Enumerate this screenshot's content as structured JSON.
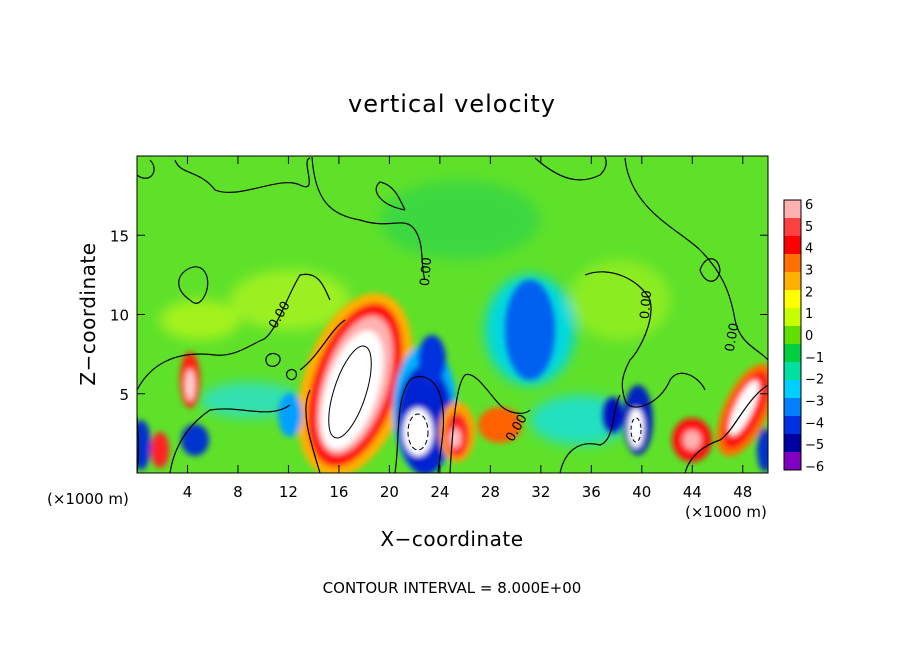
{
  "chart_data": {
    "type": "heatmap",
    "title": "vertical velocity",
    "xlabel": "X−coordinate",
    "ylabel": "Z−coordinate",
    "xlim": [
      0,
      50
    ],
    "ylim": [
      0,
      20
    ],
    "x_ticks": [
      4,
      8,
      12,
      16,
      20,
      24,
      28,
      32,
      36,
      40,
      44,
      48
    ],
    "y_ticks": [
      5,
      10,
      15
    ],
    "x_unit": "(×1000 m)",
    "y_unit": "(×1000 m)",
    "footer": "CONTOUR INTERVAL = 8.000E+00",
    "contour_label": "0.00",
    "colorbar": {
      "ticks": [
        "6",
        "5",
        "4",
        "3",
        "2",
        "1",
        "0",
        "−1",
        "−2",
        "−3",
        "−4",
        "−5",
        "−6"
      ],
      "range": [
        -6,
        6
      ],
      "colors": [
        "#ffb0b0",
        "#ff4040",
        "#ff0000",
        "#ff7000",
        "#ffb000",
        "#ffff00",
        "#c8ff00",
        "#60e000",
        "#00d040",
        "#00e0a0",
        "#00d0ff",
        "#0080ff",
        "#0030e0",
        "#0000a0",
        "#8000c0"
      ]
    },
    "features": [
      {
        "x": 17,
        "z": 5.5,
        "value": 8
      },
      {
        "x": 22.5,
        "z": 3,
        "value": -8
      },
      {
        "x": 22.5,
        "z": 6.5,
        "value": -5
      },
      {
        "x": 25.5,
        "z": 2.8,
        "value": 6
      },
      {
        "x": 30,
        "z": 3.5,
        "value": 4
      },
      {
        "x": 32,
        "z": 10.5,
        "value": -3.5
      },
      {
        "x": 5,
        "z": 5.5,
        "value": 5
      },
      {
        "x": 2,
        "z": 1.5,
        "value": 5
      },
      {
        "x": 1,
        "z": 2,
        "value": -5
      },
      {
        "x": 5,
        "z": 2,
        "value": -4
      },
      {
        "x": 13,
        "z": 4,
        "value": -3
      },
      {
        "x": 37.5,
        "z": 3.5,
        "value": -6
      },
      {
        "x": 39.5,
        "z": 3,
        "value": -7
      },
      {
        "x": 44.5,
        "z": 2.5,
        "value": 6
      },
      {
        "x": 47.5,
        "z": 4.5,
        "value": 7
      },
      {
        "x": 49.5,
        "z": 2.5,
        "value": -4
      },
      {
        "x": 38,
        "z": 11.5,
        "value": 1.5
      },
      {
        "x": 9,
        "z": 11.5,
        "value": 1
      }
    ]
  }
}
